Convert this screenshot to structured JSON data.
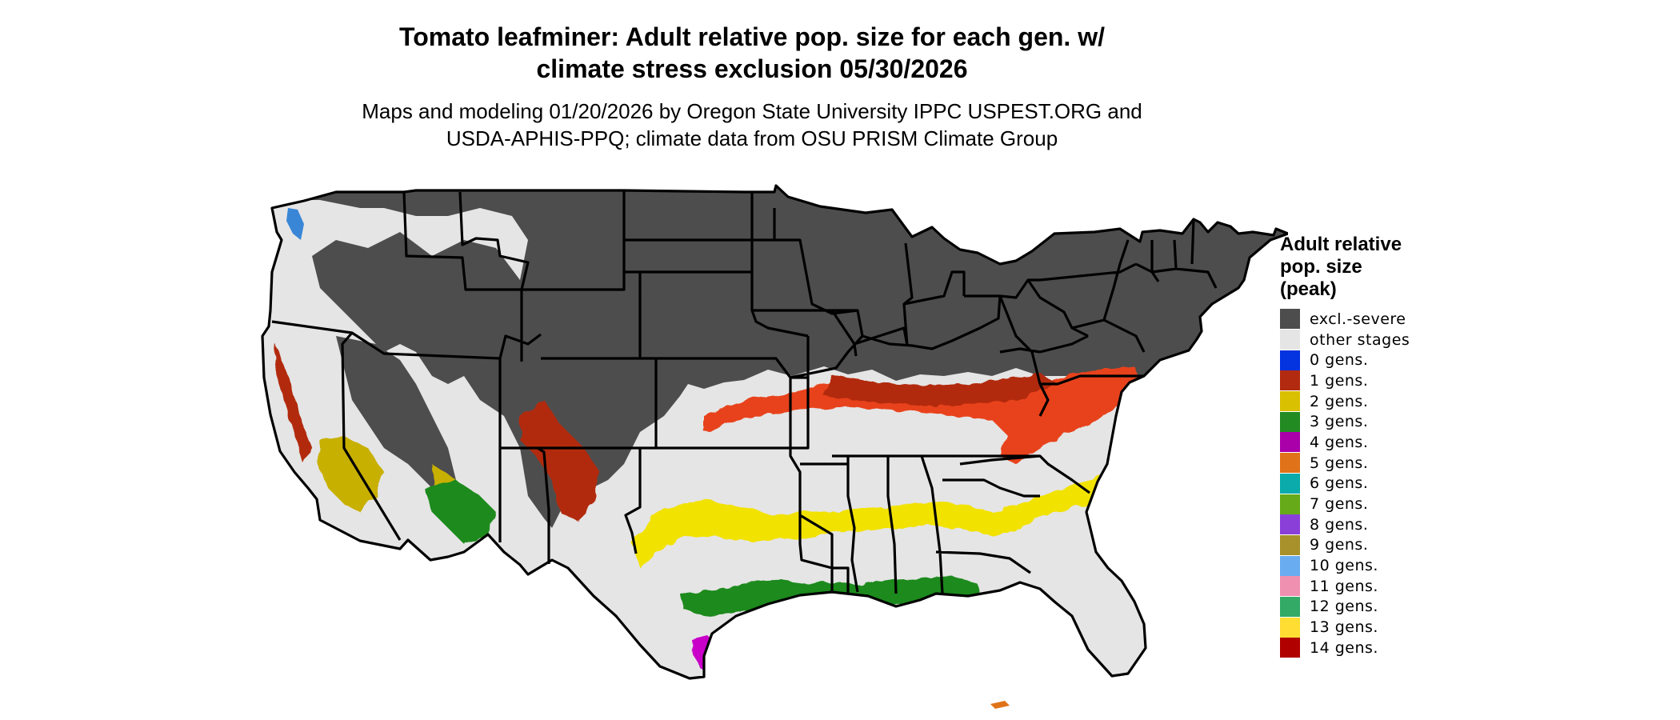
{
  "title": {
    "line1": "Tomato leafminer: Adult relative pop. size for each gen. w/",
    "line2": "climate stress exclusion 05/30/2026"
  },
  "subtitle": {
    "line1": "Maps and modeling 01/20/2026 by Oregon State University IPPC USPEST.ORG and",
    "line2": "USDA-APHIS-PPQ; climate data from OSU PRISM Climate Group"
  },
  "legend": {
    "title_line1": "Adult relative",
    "title_line2": "pop. size",
    "title_line3": "(peak)",
    "items": [
      {
        "label": "excl.-severe",
        "color": "#4d4d4d"
      },
      {
        "label": "other stages",
        "color": "#e5e5e5"
      },
      {
        "label": "0 gens.",
        "color": "#0433e0"
      },
      {
        "label": "1 gens.",
        "color": "#b22a10"
      },
      {
        "label": "2 gens.",
        "color": "#d9c000"
      },
      {
        "label": "3 gens.",
        "color": "#228b22"
      },
      {
        "label": "4 gens.",
        "color": "#aa00aa"
      },
      {
        "label": "5 gens.",
        "color": "#e0731a"
      },
      {
        "label": "6 gens.",
        "color": "#0aabaa"
      },
      {
        "label": "7 gens.",
        "color": "#66aa1a"
      },
      {
        "label": "8 gens.",
        "color": "#8a3fd9"
      },
      {
        "label": "9 gens.",
        "color": "#a8912a"
      },
      {
        "label": "10 gens.",
        "color": "#6aacf0"
      },
      {
        "label": "11 gens.",
        "color": "#ef90b0"
      },
      {
        "label": "12 gens.",
        "color": "#33aa66"
      },
      {
        "label": "13 gens.",
        "color": "#ffdd33"
      },
      {
        "label": "14 gens.",
        "color": "#b00000"
      }
    ]
  },
  "map_colors": {
    "excluded": "#4d4d4d",
    "other": "#e5e5e5",
    "border": "#000000",
    "gen1_light": "#e8421a",
    "gen1_dark": "#b22a10",
    "gen2_light": "#f2e200",
    "gen2_dark": "#c8b000",
    "gen3": "#1f8a1f",
    "gen4": "#c800c8",
    "gen5": "#e0731a",
    "gen0": "#3a86d6"
  }
}
